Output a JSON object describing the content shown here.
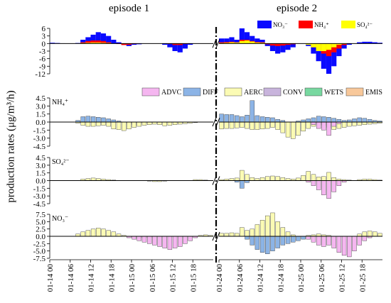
{
  "titles": {
    "episode1": "episode 1",
    "episode2": "episode 2"
  },
  "ylabel": "production rates (μg/m³/h)",
  "colors": {
    "NO3": "#0a0aff",
    "NH4": "#ff0000",
    "SO4": "#ffff00",
    "ADVC": "#f5b6f0",
    "DIFF": "#8cb4e6",
    "AERC": "#fbfbb4",
    "CONV": "#c8b4dc",
    "WETS": "#78d8a0",
    "EMIS": "#f8c89a"
  },
  "legend_top": [
    {
      "key": "NO3",
      "label": "NO₃⁻"
    },
    {
      "key": "NH4",
      "label": "NH₄⁺"
    },
    {
      "key": "SO4",
      "label": "SO₄²⁻"
    }
  ],
  "legend_proc": [
    {
      "key": "ADVC",
      "label": "ADVC"
    },
    {
      "key": "DIFF",
      "label": "DIFF"
    },
    {
      "key": "AERC",
      "label": "AERC"
    },
    {
      "key": "CONV",
      "label": "CONV"
    },
    {
      "key": "WETS",
      "label": "WETS"
    },
    {
      "key": "EMIS",
      "label": "EMIS"
    }
  ],
  "x_ticks": [
    "01-14 00",
    "01-14 06",
    "01-14 12",
    "01-14 18",
    "01-15 00",
    "01-15 06",
    "01-15 12",
    "01-15 18",
    "01-24 00",
    "01-24 06",
    "01-24 12",
    "01-24 18",
    "01-25 00",
    "01-25 06",
    "01-25 12",
    "01-25 18"
  ],
  "chart_data": [
    {
      "type": "bar",
      "name": "total",
      "yticks": [
        "6",
        "3",
        "0",
        "-3",
        "-6",
        "-9",
        "-12"
      ],
      "ylim": [
        -12,
        6
      ],
      "series": [
        {
          "key": "NO3",
          "name": "NO₃⁻",
          "ep1": [
            0.3,
            0.2,
            0.1,
            0,
            0,
            0.2,
            1.5,
            2.5,
            3.5,
            4.5,
            4,
            3,
            1.5,
            0.5,
            -0.5,
            -1,
            -0.5,
            -0.3,
            0,
            0,
            0,
            0,
            -0.5,
            -1.5,
            -3,
            -3.5,
            -2,
            -0.5,
            0,
            0,
            0,
            0
          ],
          "ep2": [
            2,
            2,
            2.5,
            1.5,
            6,
            4.5,
            3,
            2,
            1.5,
            -1,
            -3,
            -4,
            -3.5,
            -2.5,
            -1.5,
            0,
            0,
            -1,
            -4,
            -7,
            -10,
            -12,
            -9,
            -5,
            -2,
            -0.5,
            0,
            0.5,
            0.7,
            0.7,
            0.5,
            0.3
          ]
        },
        {
          "key": "NH4",
          "name": "NH₄⁺",
          "ep1": [
            0,
            0,
            0,
            0,
            0,
            0,
            0.5,
            1,
            1.2,
            1.2,
            1,
            0.5,
            0,
            -0.2,
            -0.6,
            -0.5,
            -0.2,
            0,
            0,
            0,
            0,
            0,
            0,
            -0.2,
            -0.6,
            -0.6,
            -0.2,
            0,
            0,
            0,
            0,
            0
          ],
          "ep2": [
            0.5,
            0.6,
            0.7,
            0.5,
            1.5,
            1.5,
            1,
            0.6,
            0.5,
            -0.3,
            -0.8,
            -1,
            -0.8,
            -0.5,
            -0.3,
            0,
            0,
            -0.3,
            -1.5,
            -2.5,
            -4,
            -5,
            -3.5,
            -2,
            -0.6,
            0,
            0,
            0,
            0,
            0,
            0,
            0
          ]
        },
        {
          "key": "SO4",
          "name": "SO₄²⁻",
          "ep1": [
            0,
            0,
            0,
            0,
            0,
            0,
            0.2,
            0.3,
            0.4,
            0.4,
            0.3,
            0.2,
            0,
            0,
            0,
            0,
            0,
            0,
            0,
            0,
            0,
            0,
            0,
            0,
            0,
            0,
            0,
            0,
            0,
            0,
            0,
            0
          ],
          "ep2": [
            0.2,
            0.3,
            0.5,
            0.4,
            1,
            1.2,
            0.8,
            0.4,
            0.3,
            0,
            0,
            0,
            0,
            0,
            0,
            0,
            0,
            -0.5,
            -1.5,
            -3,
            -3,
            -2.5,
            -1.5,
            -0.5,
            -0.2,
            0,
            0,
            0,
            0,
            0,
            0,
            0
          ]
        }
      ]
    },
    {
      "type": "bar",
      "name": "NH₄⁺",
      "label": "NH₄⁺",
      "yticks": [
        "4.5",
        "3.0",
        "1.5",
        "0.0",
        "-1.5",
        "-3.0",
        "-4.5"
      ],
      "ylim": [
        -4.5,
        4.5
      ],
      "series": [
        {
          "key": "DIFF",
          "name": "DIFF",
          "ep1": [
            0,
            0,
            0,
            0,
            0,
            0.3,
            1,
            1.1,
            1,
            0.9,
            0.8,
            0.6,
            0.4,
            0.2,
            0,
            -0.3,
            -0.5,
            -0.5,
            -0.3,
            0,
            0,
            0,
            0,
            0,
            0,
            0,
            0,
            0,
            0,
            0,
            0,
            0
          ],
          "ep2": [
            1.5,
            1.4,
            1.4,
            1.2,
            1,
            1.3,
            4,
            1.2,
            1,
            0.9,
            0.8,
            0.5,
            0.3,
            0,
            0,
            0.2,
            0.4,
            0.6,
            0.8,
            1.1,
            1,
            0.9,
            0.7,
            0.5,
            0.3,
            0.4,
            0.6,
            0.8,
            0.7,
            0.5,
            0.3,
            0.2
          ]
        },
        {
          "key": "AERC",
          "name": "AERC",
          "ep1": [
            0,
            0,
            0,
            0,
            0,
            -0.2,
            -0.6,
            -0.8,
            -0.8,
            -0.7,
            -0.6,
            -0.8,
            -1.3,
            -1.4,
            -1.6,
            -1.3,
            -1,
            -0.8,
            -0.6,
            -0.5,
            -0.4,
            -0.5,
            -0.7,
            -0.6,
            -0.5,
            -0.4,
            -0.3,
            -0.2,
            -0.1,
            0,
            0,
            0
          ],
          "ep2": [
            -1.3,
            -1.2,
            -1.2,
            -1.1,
            -1,
            -1.2,
            -1.4,
            -1.4,
            -1.3,
            -1.2,
            -1,
            -1.4,
            -2,
            -2.8,
            -3.1,
            -2.5,
            -1.7,
            -1.2,
            -0.8,
            -0.5,
            -0.6,
            -1,
            -1.4,
            -1.2,
            -1,
            -0.8,
            -0.7,
            -0.6,
            -0.5,
            -0.4,
            -0.3,
            -0.2
          ]
        },
        {
          "key": "ADVC",
          "name": "ADVC",
          "ep1": [
            0,
            0,
            0,
            0,
            0,
            0,
            0,
            0,
            0,
            0,
            0,
            0,
            0,
            0,
            0,
            0,
            0,
            0,
            0,
            0,
            0,
            0,
            0,
            0,
            0,
            0,
            0,
            0,
            0,
            0,
            0,
            0
          ],
          "ep2": [
            0,
            0,
            0,
            0,
            0,
            0,
            0,
            0,
            0,
            0,
            0,
            0,
            0,
            0,
            0,
            0,
            0,
            0,
            -0.5,
            -1.2,
            -1.5,
            -2.5,
            -0.8,
            -0.3,
            0,
            0,
            0,
            0,
            0,
            0,
            0,
            0
          ]
        }
      ]
    },
    {
      "type": "bar",
      "name": "SO₄²⁻",
      "label": "SO₄²⁻",
      "yticks": [
        "4.5",
        "3.0",
        "1.5",
        "0.0",
        "-1.5",
        "-3.0",
        "-4.5"
      ],
      "ylim": [
        -4.5,
        4.5
      ],
      "series": [
        {
          "key": "AERC",
          "name": "AERC",
          "ep1": [
            0,
            0,
            0,
            0,
            0,
            0,
            0.3,
            0.4,
            0.5,
            0.4,
            0.3,
            0.2,
            0.1,
            0,
            0,
            0,
            0,
            0,
            0,
            -0.1,
            -0.2,
            -0.2,
            -0.1,
            0,
            0,
            0,
            0,
            0,
            0.2,
            0.2,
            0.1,
            0
          ],
          "ep2": [
            0.2,
            0.3,
            0.4,
            0.5,
            2,
            1.2,
            0.6,
            0.4,
            0.6,
            0.8,
            0.9,
            0.8,
            0.6,
            0.4,
            0.3,
            0.5,
            1,
            1.8,
            1.2,
            0.7,
            0.8,
            1.6,
            0.6,
            0.3,
            0.2,
            0.1,
            0,
            0.2,
            0.3,
            0.3,
            0.2,
            0.1
          ]
        },
        {
          "key": "DIFF",
          "name": "DIFF",
          "ep1": [
            0,
            0,
            0,
            0,
            0,
            0,
            0,
            0,
            0,
            0,
            0,
            0,
            0,
            0,
            0,
            0,
            0,
            0,
            0,
            0,
            0,
            0,
            0,
            0,
            0,
            0,
            0,
            0,
            0,
            0,
            0,
            0
          ],
          "ep2": [
            0,
            0,
            0,
            -0.3,
            -1.5,
            -0.4,
            0,
            0,
            0,
            0,
            0,
            0,
            0,
            0,
            0,
            0,
            0,
            0,
            0,
            0,
            0,
            0,
            0,
            0,
            0,
            0,
            0,
            0,
            0,
            0,
            0,
            0
          ]
        },
        {
          "key": "ADVC",
          "name": "ADVC",
          "ep1": [
            0,
            0,
            0,
            0,
            0,
            0,
            0,
            0,
            0,
            0,
            0,
            0,
            0,
            0,
            0,
            0,
            0,
            0,
            0,
            0,
            0,
            0,
            0,
            0,
            0,
            0,
            0,
            0,
            0,
            0,
            0,
            0
          ],
          "ep2": [
            0,
            0,
            0,
            0,
            0,
            0,
            0,
            0,
            0,
            0,
            0,
            0,
            0,
            0,
            0,
            0,
            0,
            -0.3,
            -1,
            -1.8,
            -2.8,
            -3.5,
            -2.2,
            -1,
            -0.3,
            0,
            0,
            0,
            0,
            0,
            0,
            0
          ]
        }
      ]
    },
    {
      "type": "bar",
      "name": "NO₃⁻",
      "label": "NO₃⁻",
      "yticks": [
        "7.5",
        "5.0",
        "2.5",
        "0.0",
        "-2.5",
        "-5.0",
        "-7.5"
      ],
      "ylim": [
        -7.5,
        7.5
      ],
      "series": [
        {
          "key": "AERC",
          "name": "AERC",
          "ep1": [
            0,
            0,
            0,
            0,
            0,
            0.8,
            1.5,
            2,
            2.5,
            2.8,
            2.5,
            2,
            1.5,
            0.8,
            0.3,
            0,
            -0.3,
            -0.5,
            -0.5,
            -0.3,
            0,
            0,
            0,
            0,
            0,
            0,
            0,
            0,
            0,
            0.3,
            0.5,
            0.3
          ],
          "ep2": [
            1,
            1,
            1.2,
            1,
            3,
            2,
            2.5,
            4,
            5.5,
            7,
            8,
            5,
            3,
            1.5,
            0.5,
            0,
            0,
            0.3,
            0.5,
            0.8,
            0.5,
            0.3,
            0,
            0,
            0,
            0,
            0,
            0.8,
            1.5,
            1.8,
            1.5,
            1
          ]
        },
        {
          "key": "DIFF",
          "name": "DIFF",
          "ep1": [
            0,
            0,
            0,
            0,
            0,
            0,
            0,
            0,
            0,
            0,
            0,
            0,
            0,
            0,
            0,
            0,
            0,
            0,
            0,
            0,
            0,
            0,
            0,
            0,
            0,
            0,
            0,
            0,
            0,
            0,
            0,
            0
          ],
          "ep2": [
            0,
            0,
            0,
            0,
            0,
            -1,
            -3,
            -4.5,
            -5.5,
            -6,
            -5,
            -4,
            -3,
            -2.5,
            -2,
            -1.5,
            -1,
            -0.5,
            0,
            0,
            0,
            0,
            0,
            0,
            0,
            0,
            0,
            0,
            0,
            0,
            0,
            0
          ]
        },
        {
          "key": "ADVC",
          "name": "ADVC",
          "ep1": [
            0,
            0,
            0,
            0,
            0,
            0,
            0,
            0,
            0,
            0,
            0,
            0,
            0,
            0,
            0,
            -0.5,
            -1,
            -1.5,
            -2,
            -2.5,
            -3,
            -3.5,
            -4,
            -4.5,
            -4,
            -3.5,
            -2.5,
            -1.5,
            -0.5,
            0,
            0,
            0
          ],
          "ep2": [
            0,
            0,
            0,
            0,
            0,
            0,
            0,
            0,
            0,
            0,
            0,
            0,
            0,
            0,
            0,
            0,
            0,
            -1,
            -2,
            -3,
            -3.5,
            -3,
            -4,
            -5.5,
            -6.5,
            -7,
            -5,
            -3,
            -1.5,
            -0.5,
            0,
            0
          ]
        }
      ]
    }
  ]
}
